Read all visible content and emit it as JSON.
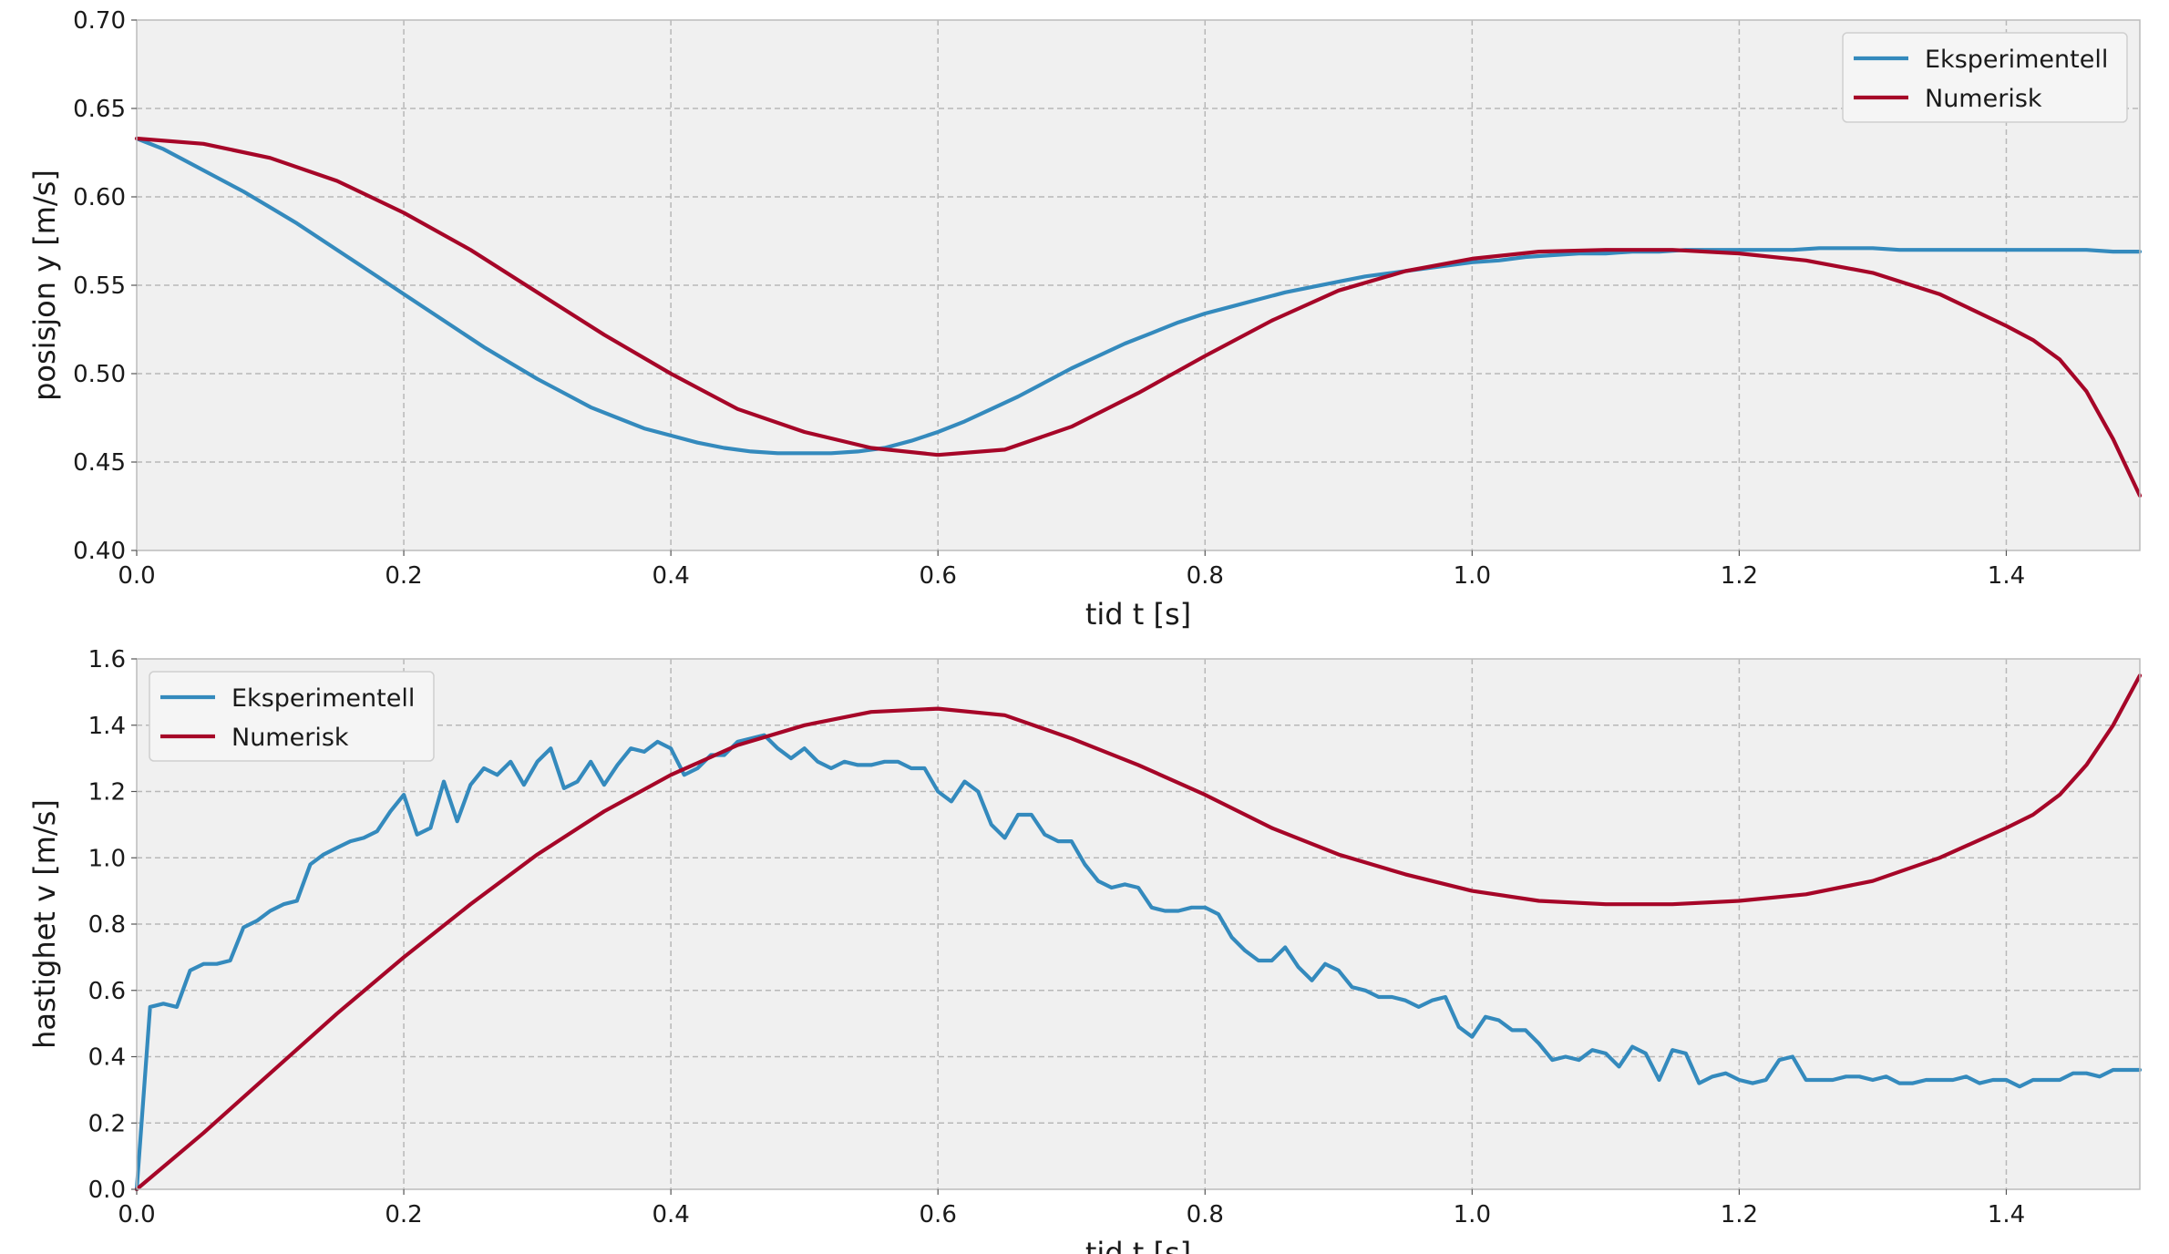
{
  "chart_data": [
    {
      "type": "line",
      "title": "",
      "xlabel": "tid t [s]",
      "ylabel": "posisjon y [m/s]",
      "xlim": [
        0.0,
        1.5
      ],
      "ylim": [
        0.4,
        0.7
      ],
      "xticks": [
        0.0,
        0.2,
        0.4,
        0.6,
        0.8,
        1.0,
        1.2,
        1.4
      ],
      "yticks": [
        0.4,
        0.45,
        0.5,
        0.55,
        0.6,
        0.65,
        0.7
      ],
      "xtick_labels": [
        "0.0",
        "0.2",
        "0.4",
        "0.6",
        "0.8",
        "1.0",
        "1.2",
        "1.4"
      ],
      "ytick_labels": [
        "0.40",
        "0.45",
        "0.50",
        "0.55",
        "0.60",
        "0.65",
        "0.70"
      ],
      "grid": true,
      "legend_position": "top-right",
      "series": [
        {
          "name": "Eksperimentell",
          "color": "#348ABD",
          "x": [
            0.0,
            0.02,
            0.04,
            0.06,
            0.08,
            0.1,
            0.12,
            0.14,
            0.16,
            0.18,
            0.2,
            0.22,
            0.24,
            0.26,
            0.28,
            0.3,
            0.32,
            0.34,
            0.36,
            0.38,
            0.4,
            0.42,
            0.44,
            0.46,
            0.48,
            0.5,
            0.52,
            0.54,
            0.56,
            0.58,
            0.6,
            0.62,
            0.64,
            0.66,
            0.68,
            0.7,
            0.72,
            0.74,
            0.76,
            0.78,
            0.8,
            0.82,
            0.84,
            0.86,
            0.88,
            0.9,
            0.92,
            0.94,
            0.96,
            0.98,
            1.0,
            1.02,
            1.04,
            1.06,
            1.08,
            1.1,
            1.12,
            1.14,
            1.16,
            1.18,
            1.2,
            1.22,
            1.24,
            1.26,
            1.28,
            1.3,
            1.32,
            1.34,
            1.36,
            1.38,
            1.4,
            1.42,
            1.44,
            1.46,
            1.48,
            1.5
          ],
          "values": [
            0.633,
            0.627,
            0.619,
            0.611,
            0.603,
            0.594,
            0.585,
            0.575,
            0.565,
            0.555,
            0.545,
            0.535,
            0.525,
            0.515,
            0.506,
            0.497,
            0.489,
            0.481,
            0.475,
            0.469,
            0.465,
            0.461,
            0.458,
            0.456,
            0.455,
            0.455,
            0.455,
            0.456,
            0.458,
            0.462,
            0.467,
            0.473,
            0.48,
            0.487,
            0.495,
            0.503,
            0.51,
            0.517,
            0.523,
            0.529,
            0.534,
            0.538,
            0.542,
            0.546,
            0.549,
            0.552,
            0.555,
            0.557,
            0.559,
            0.561,
            0.563,
            0.564,
            0.566,
            0.567,
            0.568,
            0.568,
            0.569,
            0.569,
            0.57,
            0.57,
            0.57,
            0.57,
            0.57,
            0.571,
            0.571,
            0.571,
            0.57,
            0.57,
            0.57,
            0.57,
            0.57,
            0.57,
            0.57,
            0.57,
            0.569,
            0.569
          ]
        },
        {
          "name": "Numerisk",
          "color": "#A60628",
          "x": [
            0.0,
            0.05,
            0.1,
            0.15,
            0.2,
            0.25,
            0.3,
            0.35,
            0.4,
            0.45,
            0.5,
            0.55,
            0.6,
            0.65,
            0.7,
            0.75,
            0.8,
            0.85,
            0.9,
            0.95,
            1.0,
            1.05,
            1.1,
            1.15,
            1.2,
            1.25,
            1.3,
            1.35,
            1.4,
            1.42,
            1.44,
            1.46,
            1.48,
            1.5
          ],
          "values": [
            0.633,
            0.63,
            0.622,
            0.609,
            0.591,
            0.57,
            0.546,
            0.522,
            0.5,
            0.48,
            0.467,
            0.458,
            0.454,
            0.457,
            0.47,
            0.489,
            0.51,
            0.53,
            0.547,
            0.558,
            0.565,
            0.569,
            0.57,
            0.57,
            0.568,
            0.564,
            0.557,
            0.545,
            0.527,
            0.519,
            0.508,
            0.49,
            0.463,
            0.431
          ]
        }
      ]
    },
    {
      "type": "line",
      "title": "",
      "xlabel": "tid t [s]",
      "ylabel": "hastighet v [m/s]",
      "xlim": [
        0.0,
        1.5
      ],
      "ylim": [
        0.0,
        1.6
      ],
      "xticks": [
        0.0,
        0.2,
        0.4,
        0.6,
        0.8,
        1.0,
        1.2,
        1.4
      ],
      "yticks": [
        0.0,
        0.2,
        0.4,
        0.6,
        0.8,
        1.0,
        1.2,
        1.4,
        1.6
      ],
      "xtick_labels": [
        "0.0",
        "0.2",
        "0.4",
        "0.6",
        "0.8",
        "1.0",
        "1.2",
        "1.4"
      ],
      "ytick_labels": [
        "0.0",
        "0.2",
        "0.4",
        "0.6",
        "0.8",
        "1.0",
        "1.2",
        "1.4",
        "1.6"
      ],
      "grid": true,
      "legend_position": "top-left",
      "series": [
        {
          "name": "Eksperimentell",
          "color": "#348ABD",
          "x": [
            0.0,
            0.01,
            0.02,
            0.03,
            0.04,
            0.05,
            0.06,
            0.07,
            0.08,
            0.09,
            0.1,
            0.11,
            0.12,
            0.13,
            0.14,
            0.15,
            0.16,
            0.17,
            0.18,
            0.19,
            0.2,
            0.21,
            0.22,
            0.23,
            0.24,
            0.25,
            0.26,
            0.27,
            0.28,
            0.29,
            0.3,
            0.31,
            0.32,
            0.33,
            0.34,
            0.35,
            0.36,
            0.37,
            0.38,
            0.39,
            0.4,
            0.41,
            0.42,
            0.43,
            0.44,
            0.45,
            0.46,
            0.47,
            0.48,
            0.49,
            0.5,
            0.51,
            0.52,
            0.53,
            0.54,
            0.55,
            0.56,
            0.57,
            0.58,
            0.59,
            0.6,
            0.61,
            0.62,
            0.63,
            0.64,
            0.65,
            0.66,
            0.67,
            0.68,
            0.69,
            0.7,
            0.71,
            0.72,
            0.73,
            0.74,
            0.75,
            0.76,
            0.77,
            0.78,
            0.79,
            0.8,
            0.81,
            0.82,
            0.83,
            0.84,
            0.85,
            0.86,
            0.87,
            0.88,
            0.89,
            0.9,
            0.91,
            0.92,
            0.93,
            0.94,
            0.95,
            0.96,
            0.97,
            0.98,
            0.99,
            1.0,
            1.01,
            1.02,
            1.03,
            1.04,
            1.05,
            1.06,
            1.07,
            1.08,
            1.09,
            1.1,
            1.11,
            1.12,
            1.13,
            1.14,
            1.15,
            1.16,
            1.17,
            1.18,
            1.19,
            1.2,
            1.21,
            1.22,
            1.23,
            1.24,
            1.25,
            1.26,
            1.27,
            1.28,
            1.29,
            1.3,
            1.31,
            1.32,
            1.33,
            1.34,
            1.35,
            1.36,
            1.37,
            1.38,
            1.39,
            1.4,
            1.41,
            1.42,
            1.43,
            1.44,
            1.45,
            1.46,
            1.47,
            1.48,
            1.49,
            1.5
          ],
          "values": [
            0.0,
            0.55,
            0.56,
            0.55,
            0.66,
            0.68,
            0.68,
            0.69,
            0.79,
            0.81,
            0.84,
            0.86,
            0.87,
            0.98,
            1.01,
            1.03,
            1.05,
            1.06,
            1.08,
            1.14,
            1.19,
            1.07,
            1.09,
            1.23,
            1.11,
            1.22,
            1.27,
            1.25,
            1.29,
            1.22,
            1.29,
            1.33,
            1.21,
            1.23,
            1.29,
            1.22,
            1.28,
            1.33,
            1.32,
            1.35,
            1.33,
            1.25,
            1.27,
            1.31,
            1.31,
            1.35,
            1.36,
            1.37,
            1.33,
            1.3,
            1.33,
            1.29,
            1.27,
            1.29,
            1.28,
            1.28,
            1.29,
            1.29,
            1.27,
            1.27,
            1.2,
            1.17,
            1.23,
            1.2,
            1.1,
            1.06,
            1.13,
            1.13,
            1.07,
            1.05,
            1.05,
            0.98,
            0.93,
            0.91,
            0.92,
            0.91,
            0.85,
            0.84,
            0.84,
            0.85,
            0.85,
            0.83,
            0.76,
            0.72,
            0.69,
            0.69,
            0.73,
            0.67,
            0.63,
            0.68,
            0.66,
            0.61,
            0.6,
            0.58,
            0.58,
            0.57,
            0.55,
            0.57,
            0.58,
            0.49,
            0.46,
            0.52,
            0.51,
            0.48,
            0.48,
            0.44,
            0.39,
            0.4,
            0.39,
            0.42,
            0.41,
            0.37,
            0.43,
            0.41,
            0.33,
            0.42,
            0.41,
            0.32,
            0.34,
            0.35,
            0.33,
            0.32,
            0.33,
            0.39,
            0.4,
            0.33,
            0.33,
            0.33,
            0.34,
            0.34,
            0.33,
            0.34,
            0.32,
            0.32,
            0.33,
            0.33,
            0.33,
            0.34,
            0.32,
            0.33,
            0.33,
            0.31,
            0.33,
            0.33,
            0.33,
            0.35,
            0.35,
            0.34,
            0.36,
            0.36,
            0.36
          ]
        },
        {
          "name": "Numerisk",
          "color": "#A60628",
          "x": [
            0.0,
            0.05,
            0.1,
            0.15,
            0.2,
            0.25,
            0.3,
            0.35,
            0.4,
            0.45,
            0.5,
            0.55,
            0.6,
            0.65,
            0.7,
            0.75,
            0.8,
            0.85,
            0.9,
            0.95,
            1.0,
            1.05,
            1.1,
            1.15,
            1.2,
            1.25,
            1.3,
            1.35,
            1.4,
            1.42,
            1.44,
            1.46,
            1.48,
            1.5
          ],
          "values": [
            0.0,
            0.17,
            0.35,
            0.53,
            0.7,
            0.86,
            1.01,
            1.14,
            1.25,
            1.34,
            1.4,
            1.44,
            1.45,
            1.43,
            1.36,
            1.28,
            1.19,
            1.09,
            1.01,
            0.95,
            0.9,
            0.87,
            0.86,
            0.86,
            0.87,
            0.89,
            0.93,
            1.0,
            1.09,
            1.13,
            1.19,
            1.28,
            1.4,
            1.55
          ]
        }
      ]
    }
  ]
}
